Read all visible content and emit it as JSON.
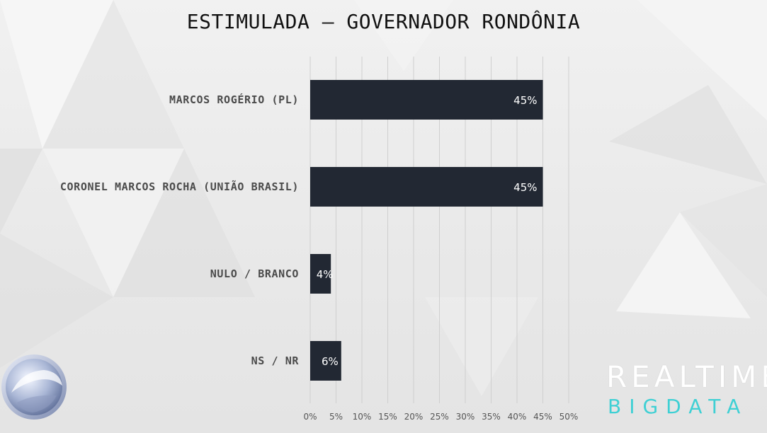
{
  "title": "ESTIMULADA – GOVERNADOR RONDÔNIA",
  "chart_data": {
    "type": "bar",
    "orientation": "horizontal",
    "title": "ESTIMULADA – GOVERNADOR RONDÔNIA",
    "categories": [
      "MARCOS ROGÉRIO (PL)",
      "CORONEL MARCOS ROCHA (UNIÃO BRASIL)",
      "NULO / BRANCO",
      "NS / NR"
    ],
    "values": [
      45,
      45,
      4,
      6
    ],
    "value_labels": [
      "45%",
      "45%",
      "4%",
      "6%"
    ],
    "xlim": [
      0,
      50
    ],
    "x_ticks": [
      "0%",
      "5%",
      "10%",
      "15%",
      "20%",
      "25%",
      "30%",
      "35%",
      "40%",
      "45%",
      "50%"
    ],
    "x_tick_values": [
      0,
      5,
      10,
      15,
      20,
      25,
      30,
      35,
      40,
      45,
      50
    ],
    "xlabel": "",
    "ylabel": "",
    "grid": "vertical",
    "legend": "none",
    "bar_color": "#222833",
    "label_color": "#4a4a4a"
  },
  "branding": {
    "top": "REALTIME",
    "bottom": "BIGDATA",
    "bottom_color": "#3fd0d4"
  },
  "icons": {
    "logo": "record-tv-logo-icon"
  }
}
